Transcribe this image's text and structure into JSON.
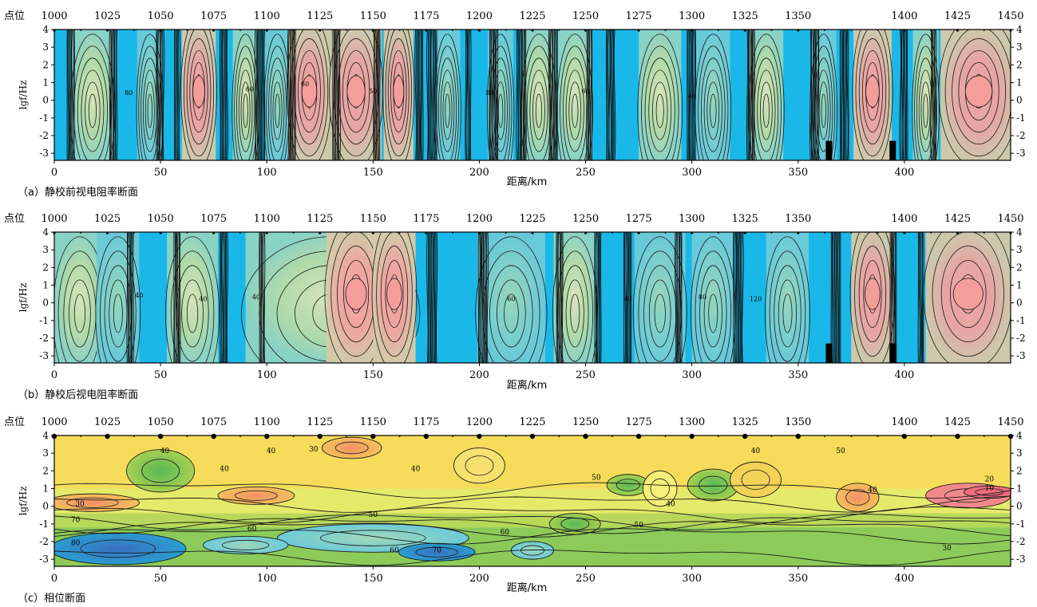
{
  "chart_data": [
    {
      "type": "heatmap",
      "caption": "（a）静校前视电阻率断面",
      "top_axis_label": "点位",
      "point_ticks": [
        1000,
        1025,
        1050,
        1075,
        1100,
        1125,
        1150,
        1175,
        1200,
        1225,
        1250,
        1275,
        1300,
        1325,
        1350,
        1400,
        1425,
        1450
      ],
      "point_positions_km": [
        0,
        25,
        50,
        75,
        100,
        125,
        150,
        175,
        200,
        225,
        250,
        275,
        300,
        325,
        350,
        400,
        425,
        450
      ],
      "xlabel": "距离/km",
      "x_ticks": [
        0,
        50,
        100,
        150,
        200,
        250,
        300,
        350,
        400
      ],
      "xlim": [
        0,
        450
      ],
      "ylabel": "lgf/Hz",
      "y_ticks": [
        4,
        3,
        2,
        1,
        0,
        -1,
        -2,
        -3
      ],
      "ylim": [
        -3.4,
        4
      ],
      "contour_labels": [
        "80",
        "60",
        "60",
        "50",
        "80",
        "60",
        "40"
      ],
      "colors": {
        "low": "#1ab8e8",
        "mid": "#b9dca8",
        "high": "#f29c98"
      }
    },
    {
      "type": "heatmap",
      "caption": "（b）静校后视电阻率断面",
      "top_axis_label": "点位",
      "point_ticks": [
        1000,
        1025,
        1050,
        1075,
        1100,
        1125,
        1150,
        1175,
        1200,
        1225,
        1250,
        1275,
        1300,
        1325,
        1350,
        1400,
        1425,
        1450
      ],
      "point_positions_km": [
        0,
        25,
        50,
        75,
        100,
        125,
        150,
        175,
        200,
        225,
        250,
        275,
        300,
        325,
        350,
        400,
        425,
        450
      ],
      "xlabel": "距离/km",
      "x_ticks": [
        0,
        50,
        100,
        150,
        200,
        250,
        300,
        350,
        400
      ],
      "xlim": [
        0,
        450
      ],
      "ylabel": "lgf/Hz",
      "y_ticks": [
        4,
        3,
        2,
        1,
        0,
        -1,
        -2,
        -3
      ],
      "ylim": [
        -3.4,
        4
      ],
      "contour_labels": [
        "40",
        "40",
        "40",
        "60",
        "40",
        "80",
        "120"
      ],
      "colors": {
        "low": "#1ab8e8",
        "mid": "#b9dca8",
        "high": "#f29c98"
      }
    },
    {
      "type": "heatmap",
      "caption": "（c）相位断面",
      "top_axis_label": "点位",
      "point_ticks": [
        1000,
        1025,
        1050,
        1075,
        1100,
        1125,
        1150,
        1175,
        1200,
        1225,
        1250,
        1275,
        1300,
        1325,
        1350,
        1400,
        1425,
        1450
      ],
      "point_positions_km": [
        0,
        25,
        50,
        75,
        100,
        125,
        150,
        175,
        200,
        225,
        250,
        275,
        300,
        325,
        350,
        400,
        425,
        450
      ],
      "xlabel": "距离/km",
      "x_ticks": [
        0,
        50,
        100,
        150,
        200,
        250,
        300,
        350,
        400
      ],
      "xlim": [
        0,
        450
      ],
      "ylabel": "lgf/Hz",
      "y_ticks": [
        4,
        3,
        2,
        1,
        0,
        -1,
        -2,
        -3
      ],
      "ylim": [
        -3.4,
        4
      ],
      "contour_labels": [
        "40",
        "40",
        "30",
        "40",
        "40",
        "50",
        "50",
        "60",
        "60",
        "60",
        "70",
        "80",
        "30",
        "70",
        "40",
        "50",
        "40",
        "30",
        "40",
        "50",
        "20",
        "10"
      ],
      "colors": {
        "low": "#f29a7a",
        "mid": "#e9ec6e",
        "high": "#2a5ab0"
      }
    }
  ]
}
